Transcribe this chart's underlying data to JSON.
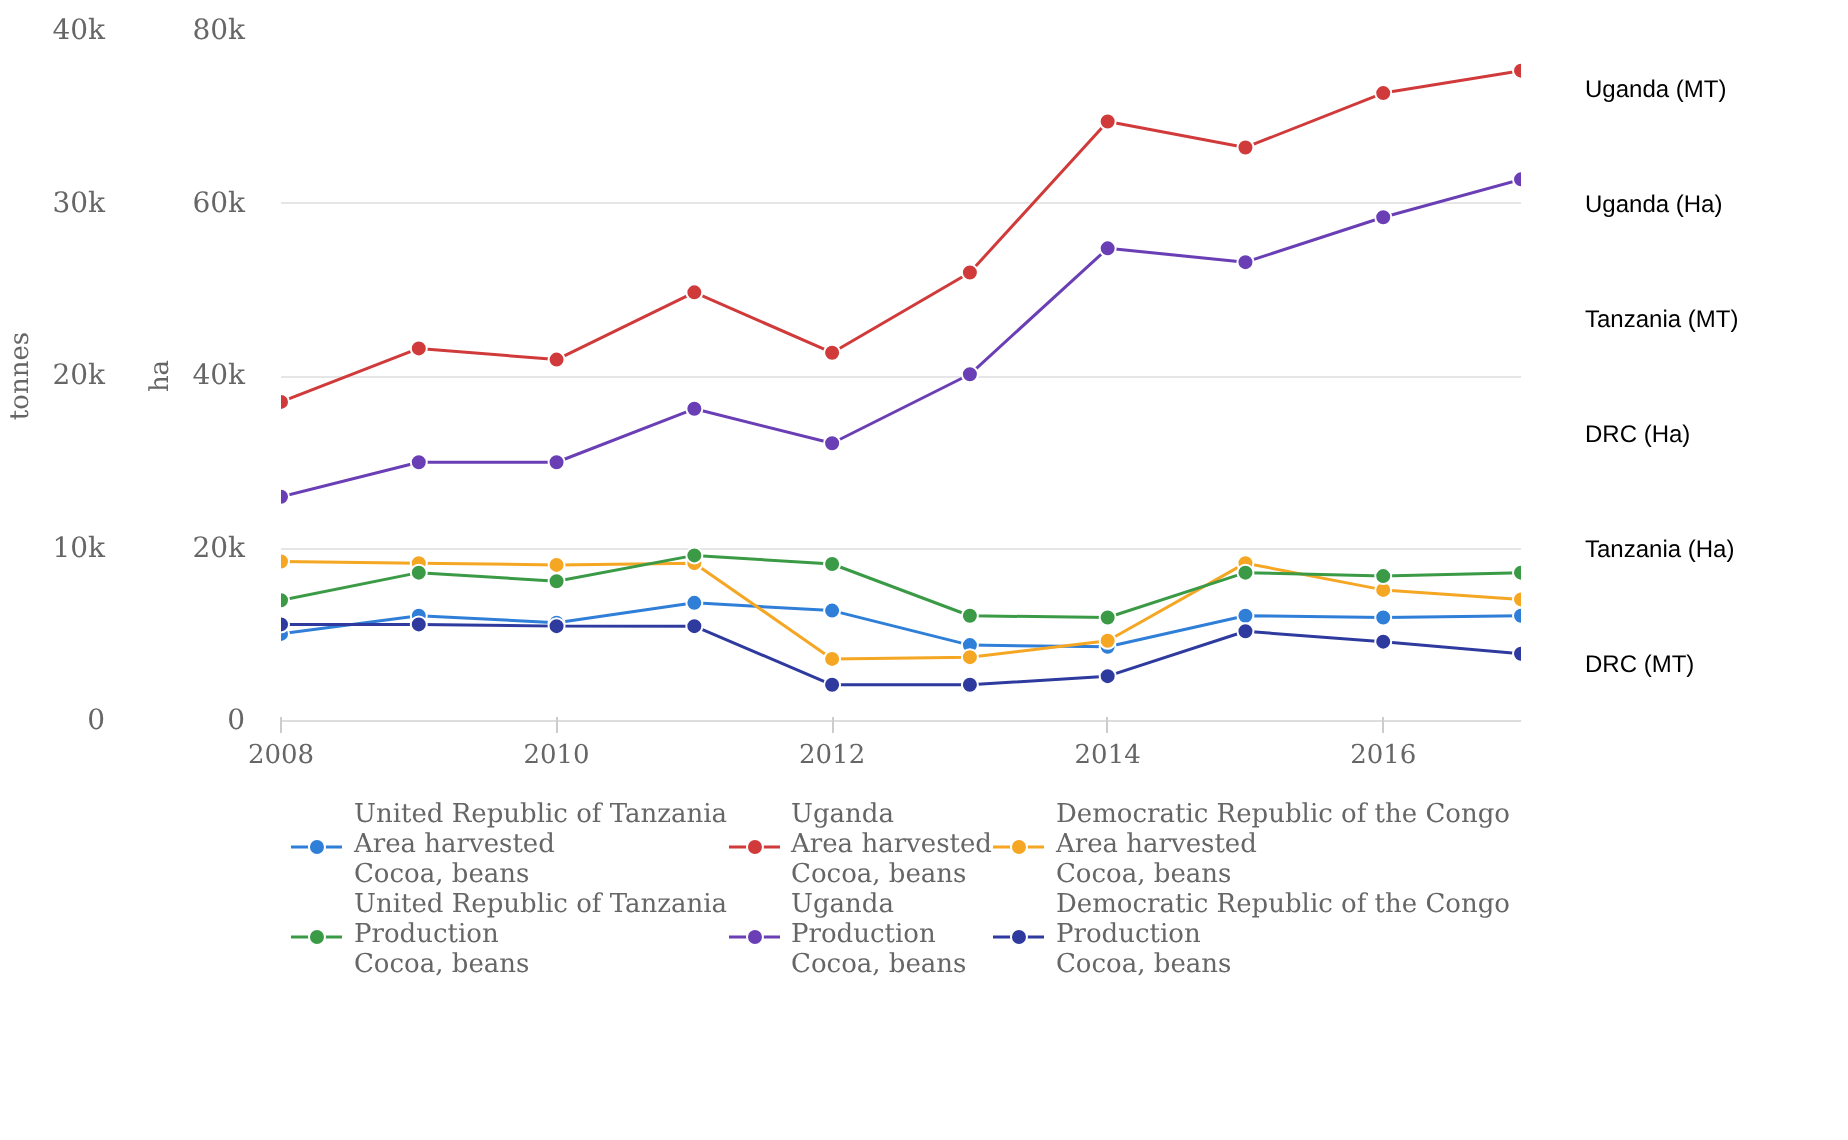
{
  "chart_data": {
    "type": "line",
    "x": [
      2008,
      2009,
      2010,
      2011,
      2012,
      2013,
      2014,
      2015,
      2016,
      2017
    ],
    "ylabel": "tonnes",
    "y2label": "ha",
    "ylim": [
      0,
      40000
    ],
    "yticks": [
      {
        "value": 0,
        "label": "0"
      },
      {
        "value": 10000,
        "label": "10k"
      },
      {
        "value": 20000,
        "label": "20k"
      },
      {
        "value": 30000,
        "label": "30k"
      },
      {
        "value": 40000,
        "label": "40k"
      }
    ],
    "y2lim": [
      0,
      80000
    ],
    "y2ticks": [
      {
        "value": 0,
        "label": "0"
      },
      {
        "value": 20000,
        "label": "20k"
      },
      {
        "value": 40000,
        "label": "40k"
      },
      {
        "value": 60000,
        "label": "60k"
      },
      {
        "value": 80000,
        "label": "80k"
      }
    ],
    "xlim": [
      2008,
      2017
    ],
    "xticks": [
      2008,
      2010,
      2012,
      2014,
      2016
    ],
    "grid": "y",
    "legend": "bottom",
    "marker": "circle",
    "line_style": "solid",
    "series": [
      {
        "name": "United Republic of Tanzania\nArea harvested\nCocoa, beans",
        "color": "#2f7ed8",
        "axis": "y2",
        "values": [
          10100,
          12200,
          11400,
          13700,
          12800,
          8800,
          8600,
          12200,
          12000,
          12200
        ]
      },
      {
        "name": "Uganda\nArea harvested\nCocoa, beans",
        "color": "#d03a3a",
        "axis": "y2",
        "values": [
          37000,
          43200,
          41900,
          49700,
          42700,
          52000,
          69500,
          66500,
          72800,
          75400
        ]
      },
      {
        "name": "Democratic Republic of the Congo\nArea harvested\nCocoa, beans",
        "color": "#f5a623",
        "axis": "y2",
        "values": [
          18500,
          18300,
          18100,
          18300,
          7200,
          7400,
          9300,
          18300,
          15200,
          14100
        ]
      },
      {
        "name": "United Republic of Tanzania\nProduction\nCocoa, beans",
        "color": "#3a9a45",
        "values": [
          7000,
          8600,
          8100,
          9600,
          9100,
          6100,
          6000,
          8600,
          8400,
          8600
        ]
      },
      {
        "name": "Uganda\nProduction\nCocoa, beans",
        "color": "#6a3fb5",
        "values": [
          13000,
          15000,
          15000,
          18100,
          16100,
          20100,
          27400,
          26600,
          29200,
          31400
        ]
      },
      {
        "name": "Democratic Republic of the Congo\nProduction\nCocoa, beans",
        "color": "#2e3a9e",
        "values": [
          5600,
          5600,
          5500,
          5500,
          2100,
          2100,
          2600,
          5200,
          4600,
          3900
        ]
      }
    ],
    "annotations": [
      "Uganda (MT)",
      "Uganda (Ha)",
      "Tanzania (MT)",
      "DRC (Ha)",
      "Tanzania (Ha)",
      "DRC (MT)"
    ]
  }
}
